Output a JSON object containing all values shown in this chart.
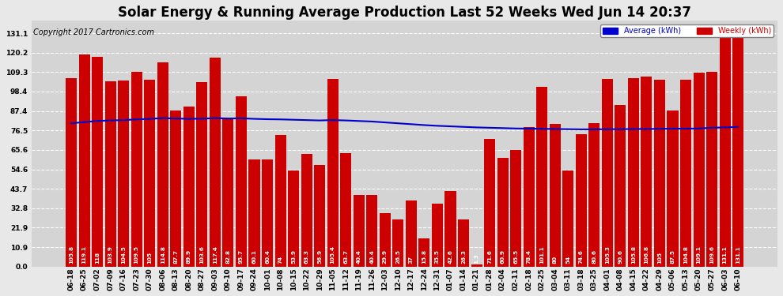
{
  "title": "Solar Energy & Running Average Production Last 52 Weeks Wed Jun 14 20:37",
  "copyright": "Copyright 2017 Cartronics.com",
  "legend_avg": "Average (kWh)",
  "legend_weekly": "Weekly (kWh)",
  "bar_color": "#cc0000",
  "avg_line_color": "#0000cc",
  "background_color": "#e8e8e8",
  "plot_bg_color": "#d4d4d4",
  "grid_color": "#ffffff",
  "yticks": [
    0.0,
    10.9,
    21.9,
    32.8,
    43.7,
    54.6,
    65.6,
    76.5,
    87.4,
    98.4,
    109.3,
    120.2,
    131.1
  ],
  "ylim": [
    0.0,
    138.0
  ],
  "dates": [
    "06-18",
    "06-25",
    "07-02",
    "07-09",
    "07-16",
    "07-23",
    "07-30",
    "08-06",
    "08-13",
    "08-20",
    "08-27",
    "09-03",
    "09-10",
    "09-17",
    "09-24",
    "10-01",
    "10-08",
    "10-15",
    "10-22",
    "10-29",
    "11-05",
    "11-12",
    "11-19",
    "11-26",
    "12-03",
    "12-10",
    "12-17",
    "12-24",
    "12-31",
    "01-07",
    "01-14",
    "01-21",
    "01-28",
    "02-04",
    "02-11",
    "02-18",
    "02-25",
    "03-04",
    "03-11",
    "03-18",
    "03-25",
    "04-01",
    "04-08",
    "04-15",
    "04-22",
    "04-29",
    "05-06",
    "05-13",
    "05-20",
    "05-27",
    "06-03",
    "06-10"
  ],
  "weekly_values": [
    105.8,
    119.1,
    118.0,
    103.9,
    104.5,
    109.5,
    105.0,
    114.8,
    87.7,
    89.9,
    103.6,
    117.4,
    82.8,
    95.7,
    60.1,
    60.4,
    74.0,
    53.9,
    63.3,
    56.9,
    105.4,
    63.7,
    40.4,
    40.4,
    29.9,
    26.5,
    37.0,
    15.8,
    35.5,
    42.6,
    26.3,
    1.3,
    71.6,
    60.9,
    65.5,
    78.4,
    101.1,
    80.0,
    54.0,
    74.6,
    80.6,
    105.3,
    90.6,
    105.8,
    106.8,
    105.0,
    87.5,
    104.8,
    109.1,
    109.6,
    131.1,
    131.1
  ],
  "avg_values": [
    80.5,
    81.2,
    81.8,
    82.1,
    82.3,
    82.7,
    83.0,
    83.4,
    83.2,
    83.0,
    83.1,
    83.4,
    83.2,
    83.3,
    83.0,
    82.8,
    82.7,
    82.5,
    82.3,
    82.1,
    82.3,
    82.1,
    81.8,
    81.5,
    81.0,
    80.5,
    80.0,
    79.5,
    79.1,
    78.8,
    78.5,
    78.2,
    78.0,
    77.8,
    77.6,
    77.5,
    77.4,
    77.3,
    77.2,
    77.1,
    77.1,
    77.2,
    77.2,
    77.3,
    77.3,
    77.4,
    77.5,
    77.5,
    77.6,
    78.0,
    78.2,
    78.5
  ],
  "title_fontsize": 12,
  "copyright_fontsize": 7,
  "tick_fontsize": 6.5,
  "bar_value_fontsize": 5.2
}
